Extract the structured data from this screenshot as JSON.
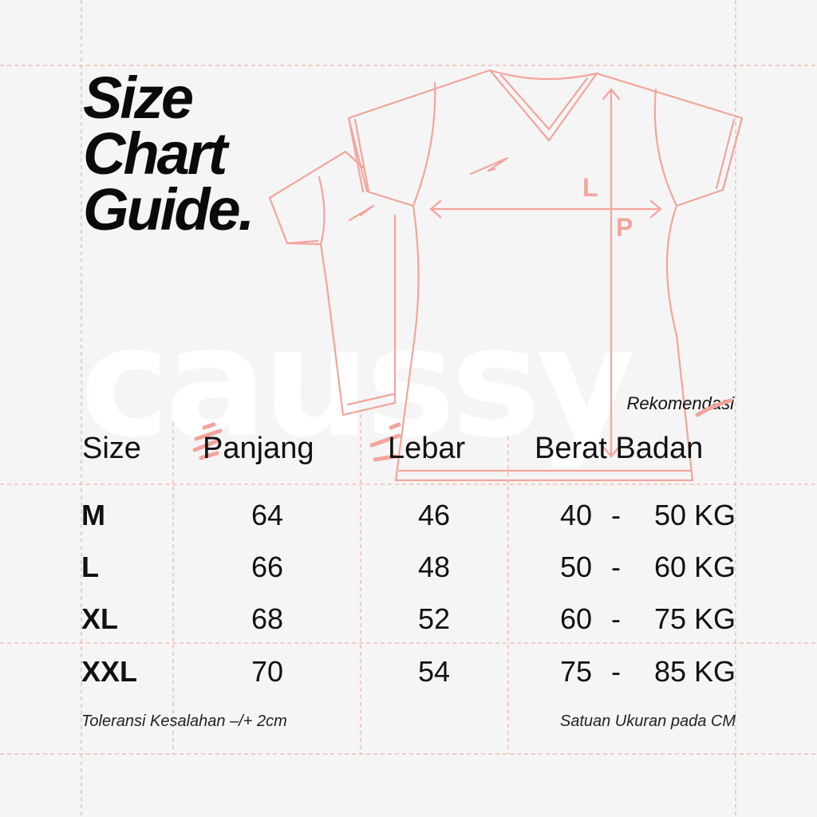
{
  "title": {
    "line1": "Size",
    "line2": "Chart",
    "line3": "Guide."
  },
  "watermark": "caussy",
  "diagram": {
    "label_width": "L",
    "label_length": "P"
  },
  "recommendation_label": "Rekomendasi",
  "table": {
    "headers": [
      "Size",
      "Panjang",
      "Lebar",
      "Berat Badan"
    ],
    "rows": [
      {
        "size": "M",
        "panjang": "64",
        "lebar": "46",
        "berat_min": "40",
        "dash": "-",
        "berat_max": "50 KG"
      },
      {
        "size": "L",
        "panjang": "66",
        "lebar": "48",
        "berat_min": "50",
        "dash": "-",
        "berat_max": "60 KG"
      },
      {
        "size": "XL",
        "panjang": "68",
        "lebar": "52",
        "berat_min": "60",
        "dash": "-",
        "berat_max": "75 KG"
      },
      {
        "size": "XXL",
        "panjang": "70",
        "lebar": "54",
        "berat_min": "75",
        "dash": "-",
        "berat_max": "85 KG"
      }
    ]
  },
  "footer": {
    "tolerance": "Toleransi Kesalahan –/+ 2cm",
    "unit": "Satuan Ukuran pada CM"
  },
  "colors": {
    "accent": "#f2a59c",
    "guide": "#f4b2aa",
    "text": "#111111",
    "background": "#f5f5f5"
  }
}
